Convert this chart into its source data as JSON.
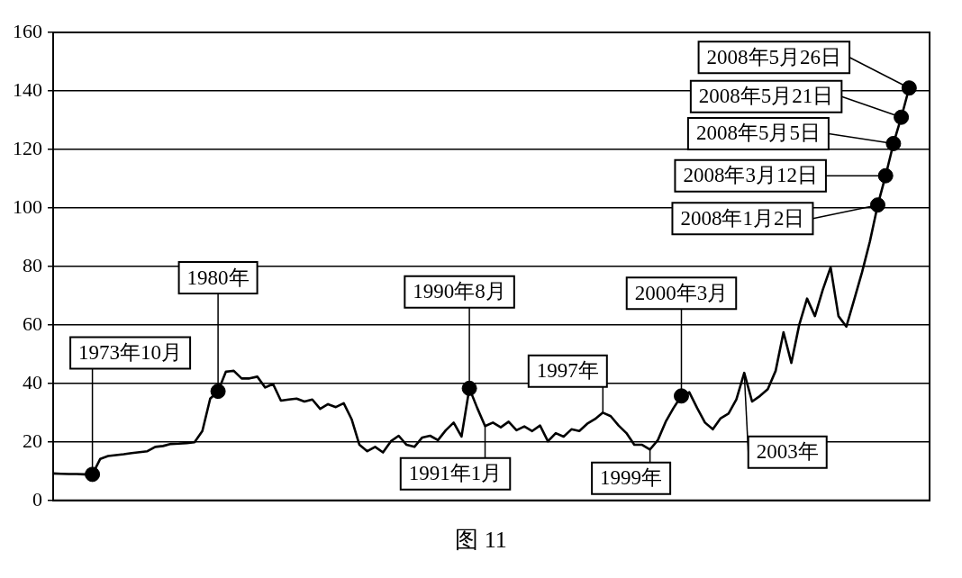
{
  "chart_data": {
    "type": "line",
    "categories": [
      null,
      null,
      null,
      null,
      null,
      null,
      null,
      null,
      null,
      null,
      null,
      null,
      null,
      null,
      null,
      null,
      null,
      null,
      null,
      null,
      null,
      null,
      null,
      null,
      null,
      null,
      null,
      null,
      null,
      null,
      null,
      null,
      null,
      null,
      null,
      null,
      null,
      null,
      null,
      null,
      null,
      null,
      null,
      null,
      null,
      null,
      null,
      null,
      null,
      null,
      null,
      null,
      null,
      null,
      null,
      null,
      null,
      null,
      null,
      null,
      null,
      null,
      null,
      null,
      null,
      null,
      null,
      null,
      null,
      null,
      null,
      null,
      null,
      null,
      null,
      null,
      null,
      null,
      null,
      null,
      null,
      null,
      null,
      null,
      null,
      null,
      null,
      null,
      null,
      null,
      null,
      null,
      null,
      null,
      null,
      null,
      null,
      null,
      null,
      null,
      null,
      null,
      null,
      null,
      null,
      null,
      null,
      null,
      null,
      null
    ],
    "ylim": [
      0,
      160
    ],
    "yticks": [
      0,
      20,
      40,
      60,
      80,
      100,
      120,
      140,
      160
    ],
    "grid": "y",
    "tick_labels": "y",
    "marker": "none",
    "line_style": "solid",
    "series": [
      {
        "color": "#000000",
        "values": [
          9.2,
          9.1,
          9.0,
          9.0,
          8.9,
          8.9,
          14.2,
          15.2,
          15.5,
          15.8,
          16.2,
          16.5,
          16.8,
          18.3,
          18.6,
          19.3,
          19.4,
          19.6,
          19.9,
          23.7,
          34.8,
          37.3,
          44,
          44.3,
          41.7,
          41.7,
          42.3,
          38.6,
          39.8,
          34.1,
          34.5,
          34.8,
          33.8,
          34.5,
          31.3,
          32.9,
          31.9,
          33.2,
          27.8,
          19,
          16.8,
          18.3,
          16.4,
          20.2,
          22.1,
          19,
          18.3,
          21.5,
          22.1,
          20.6,
          24,
          26.6,
          21.8,
          38.3,
          31.6,
          25.4,
          26.6,
          25,
          26.9,
          24,
          25.3,
          23.7,
          25.6,
          20.2,
          23,
          21.8,
          24.3,
          23.7,
          26.2,
          27.8,
          30,
          28.8,
          25.6,
          23,
          19,
          19,
          17.4,
          20.6,
          26.9,
          31.6,
          35.7,
          37,
          31.6,
          26.6,
          24.3,
          28.1,
          29.7,
          34.5,
          43.6,
          33.8,
          35.7,
          38,
          44.3,
          57.5,
          47,
          60,
          69,
          63,
          72,
          79.7,
          63,
          59.4,
          68.6,
          78,
          88.5,
          101,
          111,
          122,
          131,
          141
        ]
      },
      {
        "type": "scatter",
        "color": "#000000",
        "marker": "circle",
        "values": [
          null,
          null,
          null,
          null,
          null,
          8.9,
          null,
          null,
          null,
          null,
          null,
          null,
          null,
          null,
          null,
          null,
          null,
          null,
          null,
          null,
          null,
          37.3,
          null,
          null,
          null,
          null,
          null,
          null,
          null,
          null,
          null,
          null,
          null,
          null,
          null,
          null,
          null,
          null,
          null,
          null,
          null,
          null,
          null,
          null,
          null,
          null,
          null,
          null,
          null,
          null,
          null,
          null,
          null,
          38.3,
          null,
          null,
          null,
          null,
          null,
          null,
          null,
          null,
          null,
          null,
          null,
          null,
          null,
          null,
          null,
          null,
          null,
          null,
          null,
          null,
          null,
          null,
          null,
          null,
          null,
          null,
          35.7,
          null,
          null,
          null,
          null,
          null,
          null,
          null,
          null,
          null,
          null,
          null,
          null,
          null,
          null,
          null,
          null,
          null,
          null,
          null,
          null,
          null,
          null,
          null,
          null,
          101,
          111,
          122,
          131,
          141
        ]
      }
    ],
    "annotations": [
      "1973年10月",
      "1980年",
      "1990年8月",
      "1991年1月",
      "1997年",
      "1999年",
      "2000年3月",
      "2003年",
      "2008年5月26日",
      "2008年5月21日",
      "2008年5月5日",
      "2008年3月12日",
      "2008年1月2日",
      "图 11"
    ]
  }
}
